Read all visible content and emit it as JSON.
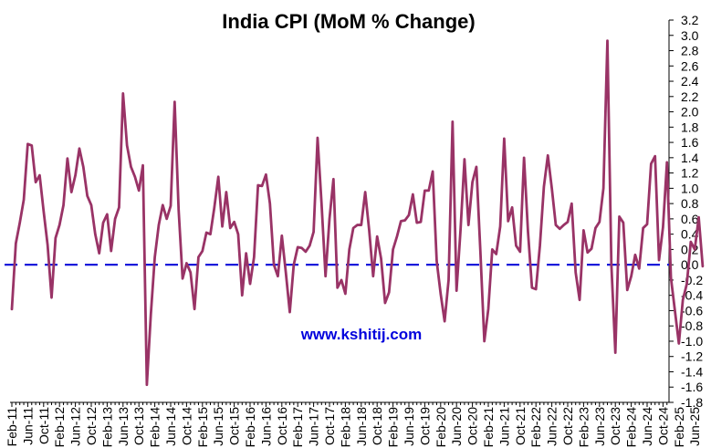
{
  "chart_data": {
    "type": "line",
    "title": "India CPI (MoM % Change)",
    "xlabel": "",
    "ylabel": "",
    "ylim": [
      -1.8,
      3.2
    ],
    "ytick_step": 0.2,
    "yaxis_position": "right",
    "grid": false,
    "legend": "none",
    "x_tick_labels": [
      "Feb-11",
      "Jun-11",
      "Oct-11",
      "Feb-12",
      "Jun-12",
      "Oct-12",
      "Feb-13",
      "Jun-13",
      "Oct-13",
      "Feb-14",
      "Jun-14",
      "Oct-14",
      "Feb-15",
      "Jun-15",
      "Oct-15",
      "Feb-16",
      "Jun-16",
      "Oct-16",
      "Feb-17",
      "Jun-17",
      "Oct-17",
      "Feb-18",
      "Jun-18",
      "Oct-18",
      "Feb-19",
      "Jun-19",
      "Oct-19",
      "Feb-20",
      "Jun-20",
      "Oct-20",
      "Feb-21",
      "Jun-21",
      "Oct-21",
      "Feb-22",
      "Jun-22",
      "Oct-22",
      "Feb-23",
      "Jun-23",
      "Oct-23",
      "Feb-24",
      "Jun-24",
      "Oct-24",
      "Feb-25",
      "Jun-25"
    ],
    "reference_line": {
      "value": 0.0,
      "style": "dashed",
      "color": "#1a1adb"
    },
    "series": [
      {
        "color": "#993366",
        "start": "Feb-11",
        "frequency": "monthly",
        "values": [
          -0.58,
          0.28,
          0.55,
          0.85,
          1.58,
          1.56,
          1.08,
          1.17,
          0.7,
          0.26,
          -0.43,
          0.35,
          0.52,
          0.78,
          1.39,
          0.95,
          1.17,
          1.52,
          1.28,
          0.9,
          0.78,
          0.4,
          0.15,
          0.55,
          0.66,
          0.18,
          0.6,
          0.75,
          2.24,
          1.56,
          1.28,
          1.15,
          0.97,
          1.3,
          -1.57,
          -0.65,
          0.1,
          0.52,
          0.78,
          0.6,
          0.77,
          2.13,
          0.72,
          -0.18,
          0.02,
          -0.1,
          -0.58,
          0.1,
          0.18,
          0.42,
          0.4,
          0.75,
          1.15,
          0.5,
          0.95,
          0.48,
          0.56,
          0.4,
          -0.4,
          0.15,
          -0.25,
          0.1,
          1.04,
          1.03,
          1.18,
          0.8,
          0.0,
          -0.15,
          0.38,
          -0.1,
          -0.62,
          0.0,
          0.23,
          0.22,
          0.17,
          0.25,
          0.43,
          1.66,
          0.8,
          -0.15,
          0.6,
          1.12,
          -0.3,
          -0.2,
          -0.38,
          0.2,
          0.48,
          0.52,
          0.52,
          0.95,
          0.45,
          -0.15,
          0.37,
          0.08,
          -0.5,
          -0.36,
          0.2,
          0.37,
          0.57,
          0.58,
          0.65,
          0.92,
          0.55,
          0.56,
          0.97,
          0.97,
          1.22,
          0.05,
          -0.38,
          -0.74,
          -0.2,
          1.87,
          -0.34,
          0.45,
          1.38,
          0.52,
          1.08,
          1.28,
          0.18,
          -1.0,
          -0.58,
          0.2,
          0.14,
          0.5,
          1.65,
          0.57,
          0.75,
          0.25,
          0.17,
          1.4,
          0.43,
          -0.3,
          -0.32,
          0.25,
          1.02,
          1.43,
          1.0,
          0.52,
          0.47,
          0.52,
          0.56,
          0.8,
          -0.1,
          -0.46,
          0.45,
          0.16,
          0.21,
          0.48,
          0.56,
          1.0,
          2.93,
          0.0,
          -1.15,
          0.63,
          0.55,
          -0.33,
          -0.15,
          0.13,
          -0.05,
          0.48,
          0.53,
          1.32,
          1.42,
          0.06,
          0.49,
          1.34,
          -0.17,
          -0.6,
          -1.03,
          -0.46,
          -0.25,
          0.3,
          0.2,
          0.62,
          -0.02
        ]
      }
    ],
    "watermark": "www.kshitij.com"
  }
}
